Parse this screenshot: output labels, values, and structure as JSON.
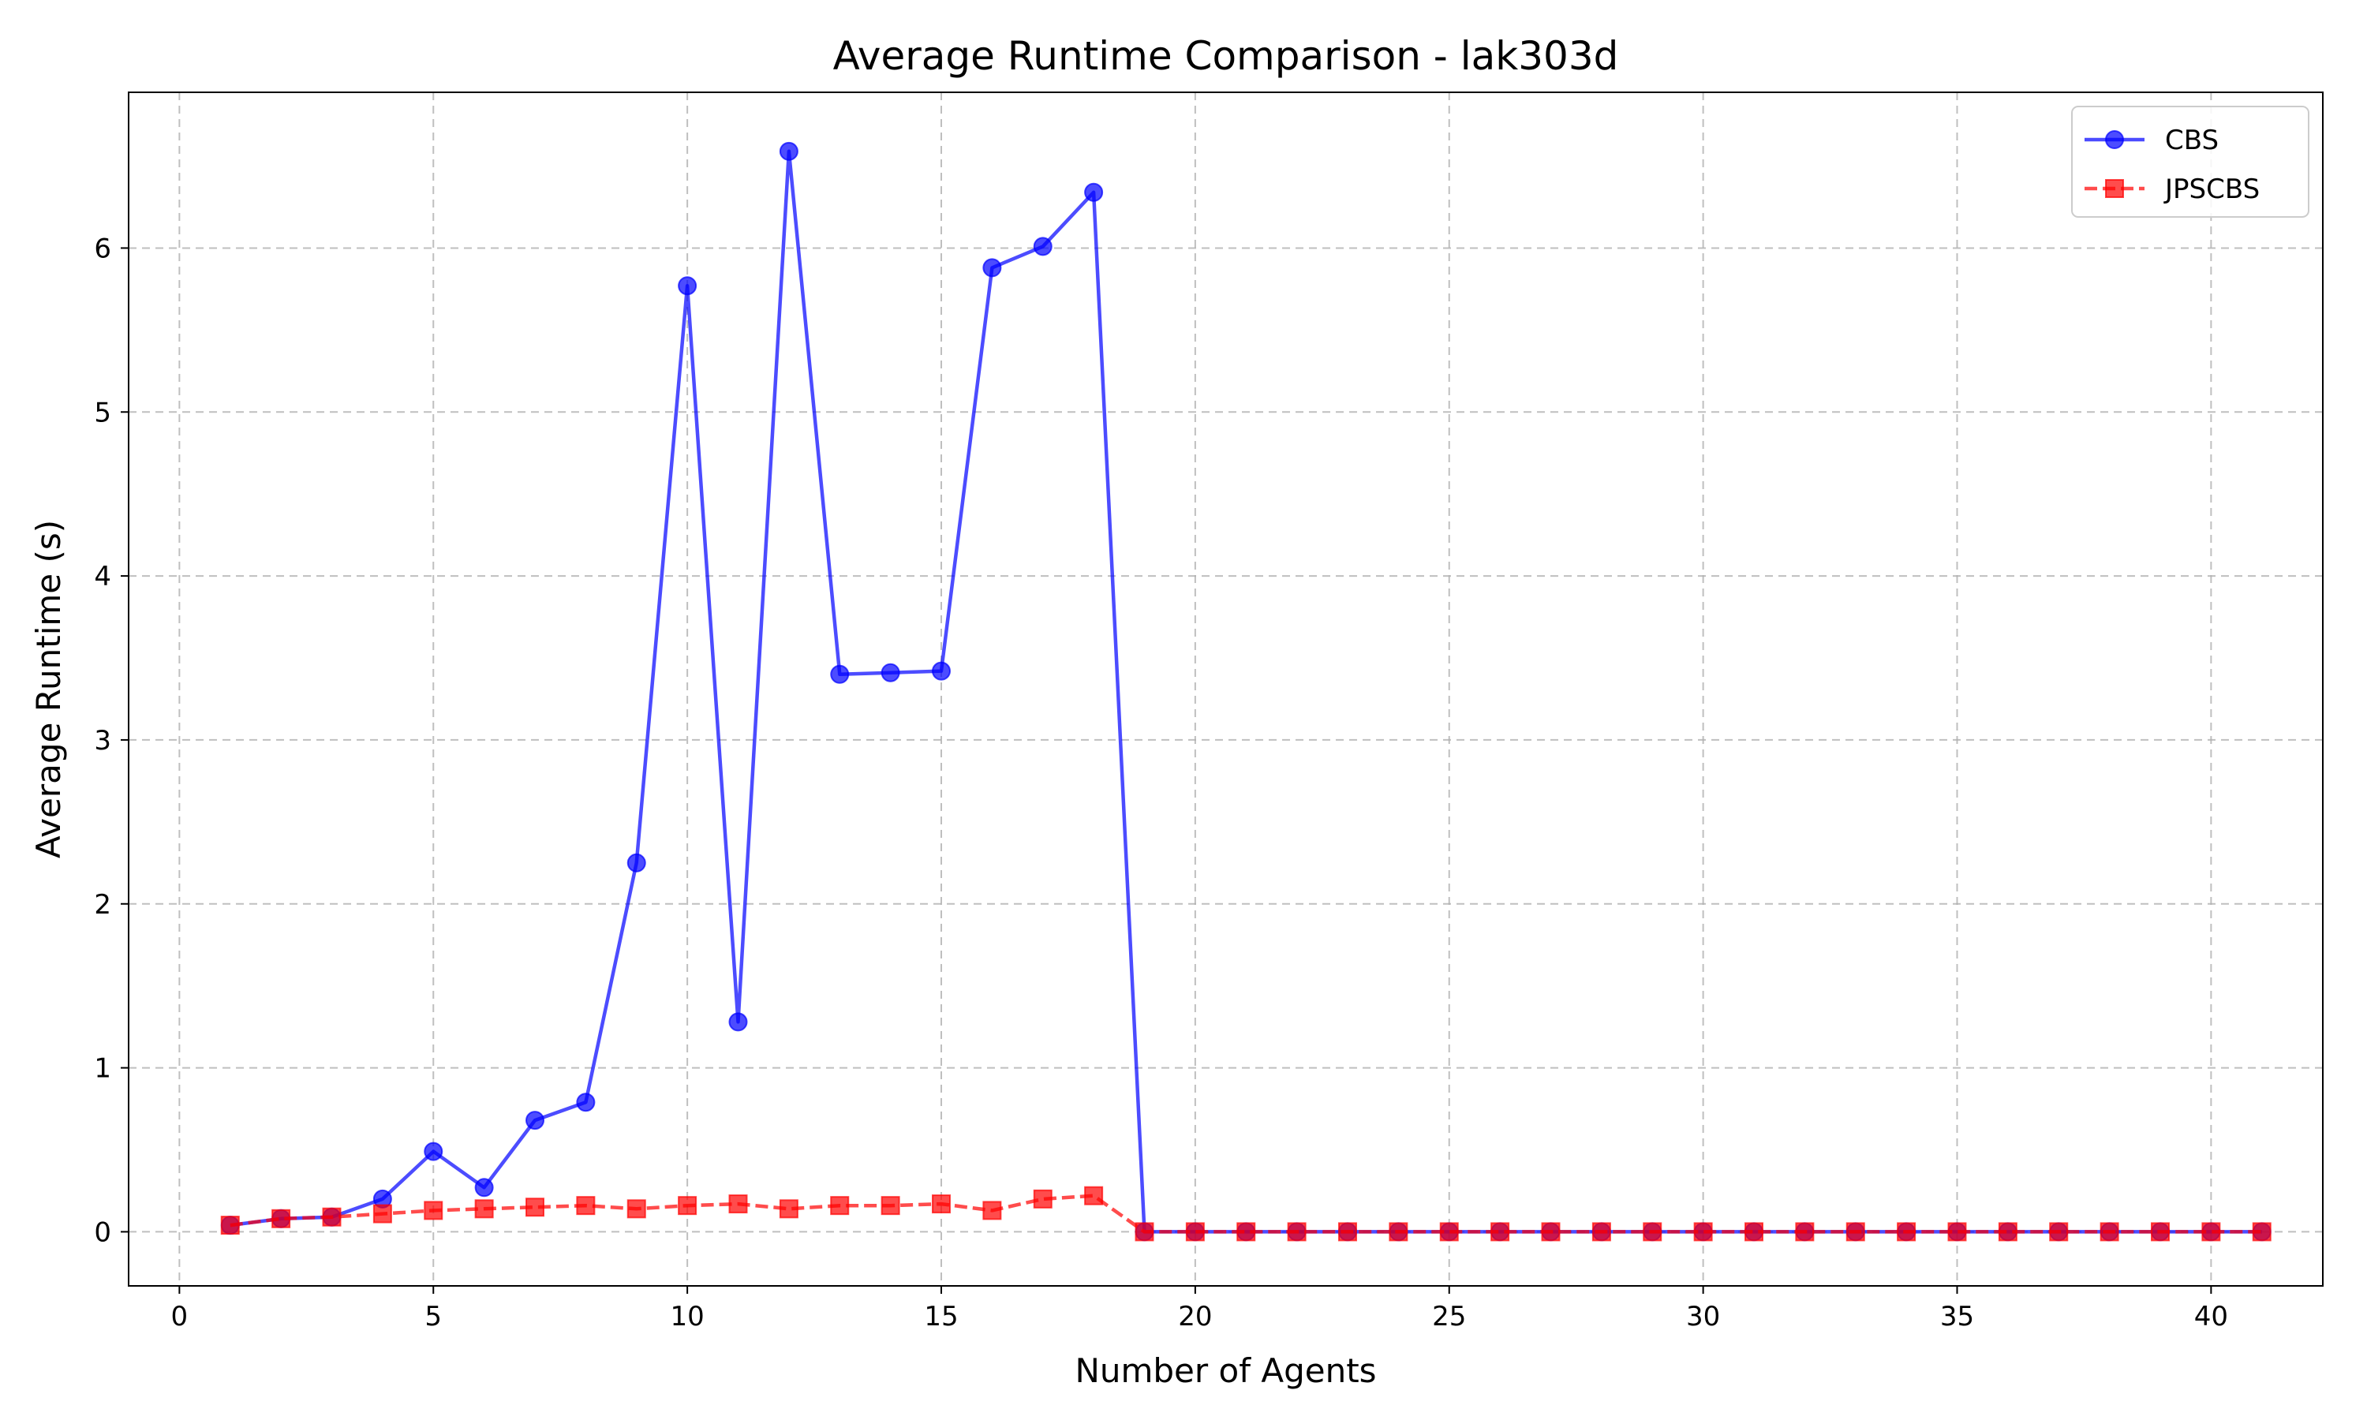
{
  "chart_data": {
    "type": "line",
    "title": "Average Runtime Comparison - lak303d",
    "xlabel": "Number of Agents",
    "ylabel": "Average Runtime (s)",
    "xlim": [
      -1,
      42.2
    ],
    "ylim": [
      -0.33,
      6.95
    ],
    "xticks": [
      0,
      5,
      10,
      15,
      20,
      25,
      30,
      35,
      40
    ],
    "yticks": [
      0,
      1,
      2,
      3,
      4,
      5,
      6
    ],
    "grid": true,
    "legend_position": "top-right",
    "x": [
      1,
      2,
      3,
      4,
      5,
      6,
      7,
      8,
      9,
      10,
      11,
      12,
      13,
      14,
      15,
      16,
      17,
      18,
      19,
      20,
      21,
      22,
      23,
      24,
      25,
      26,
      27,
      28,
      29,
      30,
      31,
      32,
      33,
      34,
      35,
      36,
      37,
      38,
      39,
      40,
      41
    ],
    "series": [
      {
        "name": "CBS",
        "color": "#0000ff",
        "marker": "circle",
        "linestyle": "solid",
        "values": [
          0.04,
          0.08,
          0.09,
          0.2,
          0.49,
          0.27,
          0.68,
          0.79,
          2.25,
          5.77,
          1.28,
          6.59,
          3.4,
          3.41,
          3.42,
          5.88,
          6.01,
          6.34,
          0,
          0,
          0,
          0,
          0,
          0,
          0,
          0,
          0,
          0,
          0,
          0,
          0,
          0,
          0,
          0,
          0,
          0,
          0,
          0,
          0,
          0,
          0
        ]
      },
      {
        "name": "JPSCBS",
        "color": "#ff0000",
        "marker": "square",
        "linestyle": "dashed",
        "values": [
          0.04,
          0.08,
          0.09,
          0.11,
          0.13,
          0.14,
          0.15,
          0.16,
          0.14,
          0.16,
          0.17,
          0.14,
          0.16,
          0.16,
          0.17,
          0.13,
          0.2,
          0.22,
          0,
          0,
          0,
          0,
          0,
          0,
          0,
          0,
          0,
          0,
          0,
          0,
          0,
          0,
          0,
          0,
          0,
          0,
          0,
          0,
          0,
          0,
          0
        ]
      }
    ]
  }
}
